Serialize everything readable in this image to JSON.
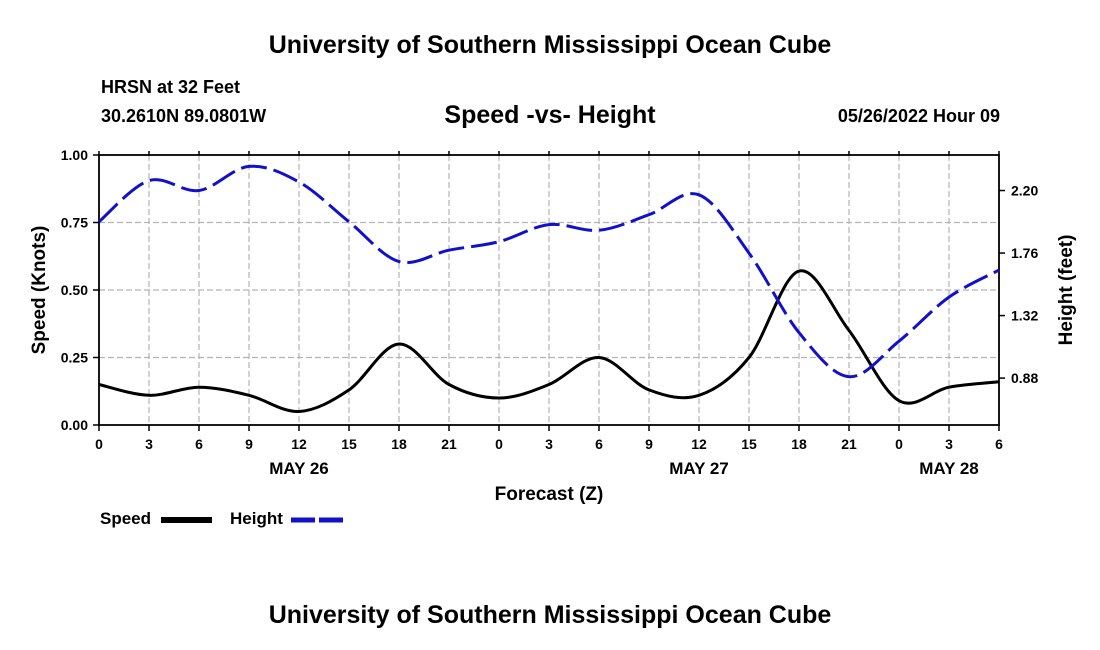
{
  "page": {
    "title_top": "University of Southern Mississippi Ocean Cube",
    "title_bottom": "University of Southern Mississippi Ocean Cube",
    "station": "HRSN at 32 Feet",
    "coords": "30.2610N  89.0801W",
    "subtitle": "Speed -vs- Height",
    "date": "05/26/2022 Hour 09"
  },
  "legend": {
    "speed_label": "Speed",
    "height_label": "Height",
    "speed_color": "#000000",
    "height_color": "#1111cc"
  },
  "chart_data": {
    "type": "line",
    "title": "Speed -vs- Height",
    "xlabel": "Forecast (Z)",
    "ylabel": "Speed (Knots)",
    "y2label": "Height (feet)",
    "x_hours": [
      0,
      54
    ],
    "x_tick_labels": [
      "0",
      "3",
      "6",
      "9",
      "12",
      "15",
      "18",
      "21",
      "0",
      "3",
      "6",
      "9",
      "12",
      "15",
      "18",
      "21",
      "0",
      "3",
      "6"
    ],
    "date_labels": [
      {
        "label": "MAY 26",
        "hour": 12
      },
      {
        "label": "MAY 27",
        "hour": 36
      },
      {
        "label": "MAY 28",
        "hour": 51
      }
    ],
    "ylim": [
      0,
      1.0
    ],
    "y_ticks": [
      0.0,
      0.25,
      0.5,
      0.75,
      1.0
    ],
    "y_tick_labels": [
      "0.00",
      "0.25",
      "0.50",
      "0.75",
      "1.00"
    ],
    "y2lim": [
      0.55,
      2.45
    ],
    "y2_ticks": [
      0.88,
      1.32,
      1.76,
      2.2
    ],
    "y2_tick_labels": [
      "0.88",
      "1.32",
      "1.76",
      "2.20"
    ],
    "grid": true,
    "series": [
      {
        "name": "Speed",
        "axis": "left",
        "style": "solid",
        "x": [
          0,
          3,
          6,
          9,
          12,
          15,
          18,
          21,
          24,
          27,
          30,
          33,
          36,
          39,
          42,
          45,
          48,
          51,
          54
        ],
        "values": [
          0.15,
          0.11,
          0.14,
          0.11,
          0.05,
          0.13,
          0.3,
          0.15,
          0.1,
          0.15,
          0.25,
          0.13,
          0.11,
          0.25,
          0.57,
          0.35,
          0.09,
          0.14,
          0.16
        ]
      },
      {
        "name": "Height",
        "axis": "right",
        "style": "dashed",
        "x": [
          0,
          3,
          6,
          9,
          12,
          15,
          18,
          21,
          24,
          27,
          30,
          33,
          36,
          39,
          42,
          45,
          48,
          51,
          54
        ],
        "values": [
          1.98,
          2.27,
          2.2,
          2.37,
          2.26,
          1.98,
          1.7,
          1.78,
          1.84,
          1.96,
          1.92,
          2.03,
          2.17,
          1.76,
          1.2,
          0.89,
          1.14,
          1.45,
          1.64
        ]
      }
    ]
  }
}
